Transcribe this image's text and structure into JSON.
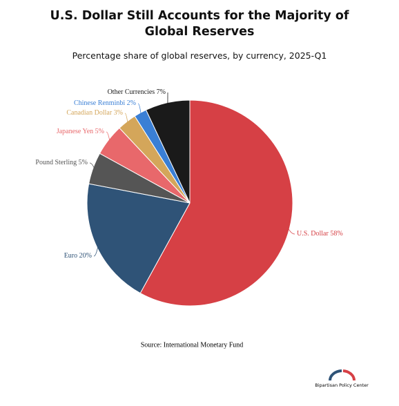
{
  "chart_data": {
    "type": "pie",
    "title": "U.S. Dollar Still Accounts for the Majority of Global Reserves",
    "subtitle": "Percentage share of global reserves, by currency, 2025-Q1",
    "categories": [
      "U.S. Dollar",
      "Euro",
      "Pound Sterling",
      "Japanese Yen",
      "Canadian Dollar",
      "Chinese Renminbi",
      "Other Currencies"
    ],
    "values": [
      58,
      20,
      5,
      5,
      3,
      2,
      7
    ],
    "value_labels": [
      "58%",
      "20%",
      "5%",
      "5%",
      "3%",
      "2%",
      "7%"
    ],
    "colors": [
      "#d64045",
      "#2f5377",
      "#555555",
      "#e8686b",
      "#d4a65a",
      "#3a7fd5",
      "#1a1a1a"
    ],
    "source": "Source: International Monetary Fund"
  },
  "logo": "Bipartisan Policy Center"
}
